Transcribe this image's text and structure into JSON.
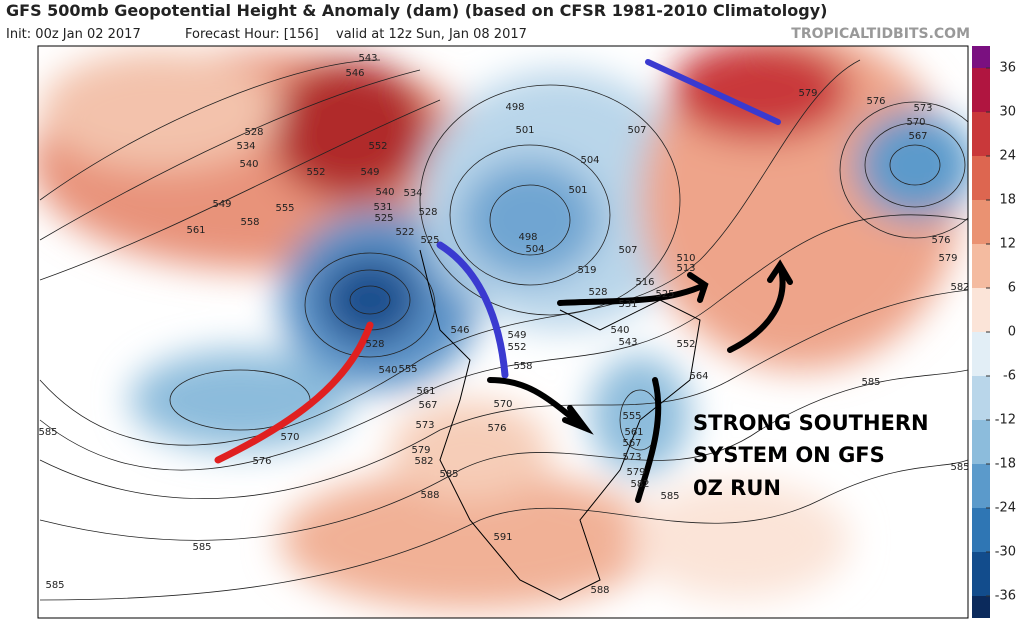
{
  "header": {
    "title": "GFS 500mb Geopotential Height & Anomaly (dam) (based on CFSR 1981-2010 Climatology)",
    "init": "Init: 00z Jan 02 2017",
    "forecast_hour": "Forecast Hour: [156]",
    "valid": "valid at 12z Sun, Jan 08 2017",
    "source": "TROPICALTIDBITS.COM"
  },
  "colorbar": {
    "ticks": [
      36,
      30,
      24,
      18,
      12,
      6,
      0,
      -6,
      -12,
      -18,
      -24,
      -30,
      -36
    ],
    "colors": [
      "#b01540",
      "#c9383a",
      "#dd6650",
      "#ea9272",
      "#f4bba0",
      "#fbe4d8",
      "#e2eef6",
      "#b9d6ea",
      "#8cbcdc",
      "#5b9acb",
      "#2f76b4",
      "#124c8c"
    ]
  },
  "map": {
    "contour_labels": [
      "543",
      "546",
      "528",
      "534",
      "540",
      "552",
      "549",
      "552",
      "555",
      "549",
      "558",
      "561",
      "540",
      "534",
      "531",
      "528",
      "525",
      "522",
      "525",
      "498",
      "501",
      "507",
      "504",
      "501",
      "498",
      "504",
      "507",
      "510",
      "513",
      "519",
      "516",
      "528",
      "531",
      "525",
      "540",
      "543",
      "546",
      "549",
      "552",
      "558",
      "528",
      "540",
      "555",
      "561",
      "567",
      "570",
      "573",
      "576",
      "579",
      "582",
      "585",
      "588",
      "570",
      "576",
      "585",
      "585",
      "585",
      "591",
      "588",
      "585",
      "579",
      "576",
      "573",
      "570",
      "567",
      "576",
      "579",
      "582",
      "585",
      "585",
      "564",
      "555",
      "561",
      "567",
      "573",
      "579",
      "582",
      "552"
    ],
    "annotation": [
      "STRONG SOUTHERN",
      "SYSTEM ON GFS",
      "0Z RUN"
    ]
  }
}
